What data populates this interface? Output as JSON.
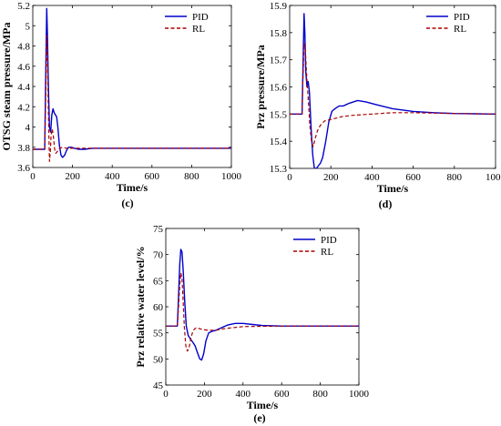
{
  "chart_data": [
    {
      "type": "line",
      "caption": "(c)",
      "title": "",
      "xlabel": "Time/s",
      "ylabel": "OTSG steam pressure/MPa",
      "xlim": [
        0,
        1000
      ],
      "ylim": [
        3.6,
        5.2
      ],
      "xticks": [
        "0",
        "200",
        "400",
        "600",
        "800",
        "1000"
      ],
      "yticks": [
        "3.6",
        "3.8",
        "4",
        "4.2",
        "4.4",
        "4.6",
        "4.8",
        "5",
        "5.2"
      ],
      "legend_position": "top-right",
      "grid": false,
      "series": [
        {
          "name": "PID",
          "color": "#0000cc",
          "style": "solid",
          "x": [
            0,
            60,
            64,
            70,
            74,
            78,
            84,
            90,
            96,
            102,
            108,
            114,
            120,
            126,
            134,
            142,
            150,
            160,
            170,
            180,
            195,
            210,
            230,
            260,
            300,
            400,
            600,
            800,
            1000
          ],
          "y": [
            3.78,
            3.78,
            4.4,
            5.17,
            4.9,
            4.45,
            4.0,
            3.95,
            4.12,
            4.18,
            4.14,
            4.12,
            4.1,
            4.0,
            3.82,
            3.72,
            3.7,
            3.72,
            3.77,
            3.8,
            3.8,
            3.79,
            3.78,
            3.78,
            3.79,
            3.79,
            3.79,
            3.79,
            3.79
          ]
        },
        {
          "name": "RL",
          "color": "#aa0000",
          "style": "dashed",
          "x": [
            0,
            60,
            64,
            70,
            74,
            78,
            84,
            88,
            92,
            98,
            104,
            110,
            116,
            124,
            134,
            150,
            170,
            200,
            250,
            400,
            600,
            800,
            1000
          ],
          "y": [
            3.78,
            3.78,
            4.2,
            4.9,
            4.7,
            4.2,
            3.66,
            3.75,
            3.92,
            3.98,
            3.9,
            3.78,
            3.74,
            3.76,
            3.79,
            3.8,
            3.79,
            3.79,
            3.79,
            3.79,
            3.79,
            3.79,
            3.79
          ]
        }
      ]
    },
    {
      "type": "line",
      "caption": "(d)",
      "title": "",
      "xlabel": "Time/s",
      "ylabel": "Prz pressure/MPa",
      "xlim": [
        0,
        1000
      ],
      "ylim": [
        15.3,
        15.9
      ],
      "xticks": [
        "0",
        "200",
        "400",
        "600",
        "800",
        "1000"
      ],
      "yticks": [
        "15.3",
        "15.4",
        "15.5",
        "15.6",
        "15.7",
        "15.8",
        "15.9"
      ],
      "legend_position": "top-right",
      "grid": false,
      "series": [
        {
          "name": "PID",
          "color": "#0000cc",
          "style": "solid",
          "x": [
            0,
            60,
            64,
            70,
            74,
            78,
            84,
            90,
            96,
            104,
            112,
            120,
            130,
            140,
            150,
            160,
            175,
            190,
            205,
            220,
            240,
            260,
            290,
            330,
            370,
            420,
            500,
            600,
            700,
            800,
            900,
            1000
          ],
          "y": [
            15.5,
            15.5,
            15.65,
            15.87,
            15.8,
            15.66,
            15.6,
            15.62,
            15.58,
            15.45,
            15.35,
            15.3,
            15.3,
            15.31,
            15.32,
            15.34,
            15.4,
            15.47,
            15.51,
            15.52,
            15.53,
            15.53,
            15.54,
            15.55,
            15.545,
            15.535,
            15.52,
            15.51,
            15.505,
            15.502,
            15.501,
            15.5
          ]
        },
        {
          "name": "RL",
          "color": "#aa0000",
          "style": "dashed",
          "x": [
            0,
            60,
            64,
            70,
            76,
            82,
            90,
            98,
            106,
            114,
            124,
            136,
            150,
            170,
            200,
            250,
            300,
            400,
            500,
            600,
            800,
            1000
          ],
          "y": [
            15.5,
            15.5,
            15.62,
            15.76,
            15.74,
            15.65,
            15.56,
            15.46,
            15.4,
            15.38,
            15.41,
            15.44,
            15.46,
            15.475,
            15.48,
            15.49,
            15.495,
            15.5,
            15.505,
            15.505,
            15.502,
            15.5
          ]
        }
      ]
    },
    {
      "type": "line",
      "caption": "(e)",
      "title": "",
      "xlabel": "Time/s",
      "ylabel": "Prz relative water level/%",
      "xlim": [
        0,
        1000
      ],
      "ylim": [
        45,
        75
      ],
      "xticks": [
        "0",
        "200",
        "400",
        "600",
        "800",
        "1000"
      ],
      "yticks": [
        "45",
        "50",
        "55",
        "60",
        "65",
        "70",
        "75"
      ],
      "legend_position": "top-right",
      "grid": false,
      "series": [
        {
          "name": "PID",
          "color": "#0000cc",
          "style": "solid",
          "x": [
            0,
            60,
            66,
            72,
            78,
            84,
            90,
            98,
            106,
            116,
            128,
            140,
            152,
            164,
            176,
            186,
            196,
            208,
            222,
            240,
            260,
            290,
            320,
            360,
            400,
            450,
            500,
            600,
            700,
            800,
            1000
          ],
          "y": [
            56.3,
            56.3,
            62,
            68,
            71,
            70.5,
            67,
            61,
            56.3,
            54.5,
            53.8,
            53.2,
            52.5,
            51.2,
            50,
            49.8,
            51,
            53.5,
            55,
            55.3,
            55.5,
            56,
            56.5,
            56.8,
            56.8,
            56.6,
            56.4,
            56.3,
            56.3,
            56.3,
            56.3
          ]
        },
        {
          "name": "RL",
          "color": "#aa0000",
          "style": "dashed",
          "x": [
            0,
            60,
            66,
            72,
            78,
            84,
            90,
            96,
            104,
            112,
            120,
            130,
            140,
            150,
            160,
            175,
            195,
            220,
            260,
            300,
            400,
            600,
            800,
            1000
          ],
          "y": [
            56.3,
            56.3,
            60,
            64,
            66.5,
            65.5,
            61,
            56,
            52.5,
            51.5,
            52,
            54,
            55.3,
            55.8,
            56,
            55.8,
            55.6,
            55.5,
            55.5,
            55.8,
            56.2,
            56.3,
            56.3,
            56.3
          ]
        }
      ]
    }
  ]
}
